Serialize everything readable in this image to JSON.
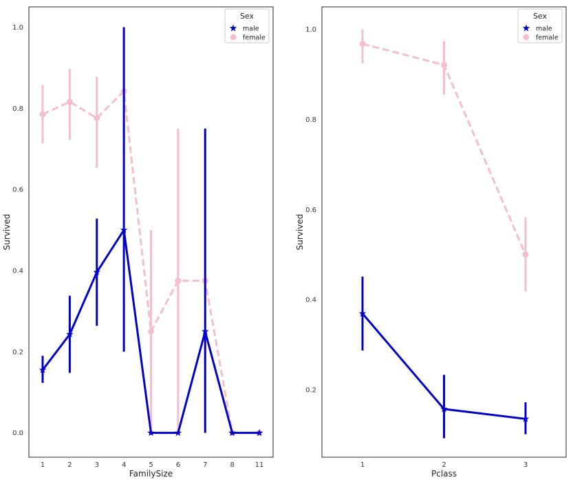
{
  "chart_data": [
    {
      "type": "line",
      "title": "",
      "xlabel": "FamilySize",
      "ylabel": "Survived",
      "categories": [
        "1",
        "2",
        "3",
        "4",
        "5",
        "6",
        "7",
        "8",
        "11"
      ],
      "ylim": [
        -0.06,
        1.05
      ],
      "yticks": [
        "0.0",
        "0.2",
        "0.4",
        "0.6",
        "0.8",
        "1.0"
      ],
      "grid": false,
      "legend": {
        "title": "Sex",
        "placement": "top-right"
      },
      "series": [
        {
          "name": "male",
          "color": "#0000cc",
          "marker": "star",
          "linestyle": "solid",
          "values": [
            0.155,
            0.243,
            0.396,
            0.5,
            0.0,
            0.0,
            0.25,
            0.0,
            0.0
          ],
          "ci_low": [
            0.123,
            0.148,
            0.264,
            0.2,
            0.0,
            0.0,
            0.0,
            0.0,
            0.0
          ],
          "ci_high": [
            0.19,
            0.338,
            0.528,
            1.0,
            0.0,
            0.0,
            0.75,
            0.0,
            0.0
          ]
        },
        {
          "name": "female",
          "color": "#f4bfca",
          "marker": "circle",
          "linestyle": "dashed",
          "values": [
            0.785,
            0.816,
            0.776,
            0.842,
            0.25,
            0.375,
            0.375,
            0.0,
            0.0
          ],
          "ci_low": [
            0.713,
            0.722,
            0.653,
            0.684,
            0.0,
            0.0,
            0.0,
            0.0,
            0.0
          ],
          "ci_high": [
            0.858,
            0.897,
            0.878,
            1.0,
            0.5,
            0.75,
            0.75,
            0.0,
            0.0
          ]
        }
      ]
    },
    {
      "type": "line",
      "title": "",
      "xlabel": "Pclass",
      "ylabel": "Survived",
      "categories": [
        "1",
        "2",
        "3"
      ],
      "ylim": [
        0.05,
        1.05
      ],
      "yticks": [
        "0.2",
        "0.4",
        "0.6",
        "0.8",
        "1.0"
      ],
      "grid": false,
      "legend": {
        "title": "Sex",
        "placement": "top-right"
      },
      "series": [
        {
          "name": "male",
          "color": "#0000cc",
          "marker": "star",
          "linestyle": "solid",
          "values": [
            0.369,
            0.157,
            0.135
          ],
          "ci_low": [
            0.287,
            0.092,
            0.101
          ],
          "ci_high": [
            0.451,
            0.233,
            0.172
          ]
        },
        {
          "name": "female",
          "color": "#f4bfca",
          "marker": "circle",
          "linestyle": "dashed",
          "values": [
            0.968,
            0.921,
            0.5
          ],
          "ci_low": [
            0.925,
            0.855,
            0.418
          ],
          "ci_high": [
            1.0,
            0.974,
            0.583
          ]
        }
      ]
    }
  ]
}
